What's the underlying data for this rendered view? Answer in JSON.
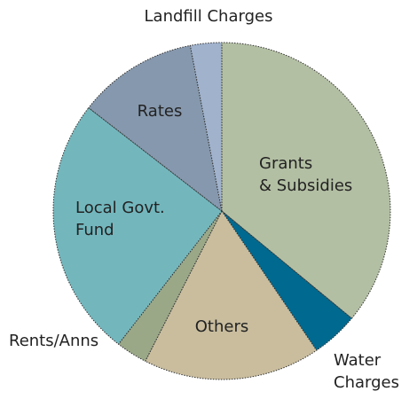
{
  "chart_data": {
    "type": "pie",
    "categories": [
      "Grants\n& Subsidies",
      "Water\nCharges",
      "Others",
      "Rents/Anns",
      "Local Govt.\nFund",
      "Rates",
      "Landfill Charges"
    ],
    "values": [
      36,
      4.5,
      17,
      3,
      25,
      11.5,
      3
    ],
    "colors": [
      "#b3bfa3",
      "#00698f",
      "#c9bd9e",
      "#9aa888",
      "#73b7bd",
      "#8698ad",
      "#a0b2cc"
    ]
  }
}
